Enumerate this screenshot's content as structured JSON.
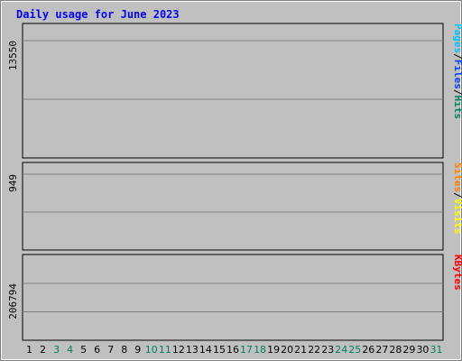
{
  "chart_data": {
    "type": "bar",
    "title": "Daily usage for June 2023",
    "categories": [
      "1",
      "2",
      "3",
      "4",
      "5",
      "6",
      "7",
      "8",
      "9",
      "10",
      "11",
      "12",
      "13",
      "14",
      "15",
      "16",
      "17",
      "18",
      "19",
      "20",
      "21",
      "22",
      "23",
      "24",
      "25",
      "26",
      "27",
      "28",
      "29",
      "30",
      "31"
    ],
    "weekend_days": [
      3,
      4,
      10,
      11,
      17,
      18,
      24,
      25,
      31
    ],
    "panels": [
      {
        "id": "top",
        "ymax_label": "13550",
        "ymax": 13550,
        "axis_words": [
          "Pages",
          "/",
          "Files",
          "/",
          "Hits"
        ],
        "series": [
          {
            "name": "Hits",
            "values": [
              null,
              null,
              null,
              null,
              null,
              null,
              null,
              null,
              null,
              null,
              null,
              null,
              null,
              null,
              null,
              null,
              null,
              null,
              null,
              null,
              null,
              null,
              null,
              null,
              null,
              null,
              null,
              null,
              null,
              null,
              null
            ]
          },
          {
            "name": "Files",
            "values": [
              null,
              null,
              null,
              null,
              null,
              null,
              null,
              null,
              null,
              null,
              null,
              null,
              null,
              null,
              null,
              null,
              null,
              null,
              null,
              null,
              null,
              null,
              null,
              null,
              null,
              null,
              null,
              null,
              null,
              null,
              null
            ]
          },
          {
            "name": "Pages",
            "values": [
              null,
              null,
              null,
              null,
              null,
              null,
              null,
              null,
              null,
              null,
              null,
              null,
              null,
              null,
              null,
              null,
              null,
              null,
              null,
              null,
              null,
              null,
              null,
              null,
              null,
              null,
              null,
              null,
              null,
              null,
              null
            ]
          }
        ]
      },
      {
        "id": "middle",
        "ymax_label": "949",
        "ymax": 949,
        "axis_words": [
          "Sites",
          "/",
          "Visits"
        ],
        "series": [
          {
            "name": "Visits",
            "values": [
              null,
              null,
              null,
              null,
              null,
              null,
              null,
              null,
              null,
              null,
              null,
              null,
              null,
              null,
              null,
              null,
              null,
              null,
              null,
              null,
              null,
              null,
              null,
              null,
              null,
              null,
              null,
              null,
              null,
              null,
              null
            ]
          },
          {
            "name": "Sites",
            "values": [
              null,
              null,
              null,
              null,
              null,
              null,
              null,
              null,
              null,
              null,
              null,
              null,
              null,
              null,
              null,
              null,
              null,
              null,
              null,
              null,
              null,
              null,
              null,
              null,
              null,
              null,
              null,
              null,
              null,
              null,
              null
            ]
          }
        ]
      },
      {
        "id": "bottom",
        "ymax_label": "206794",
        "ymax": 206794,
        "axis_words": [
          "KBytes"
        ],
        "series": [
          {
            "name": "KBytes",
            "values": [
              null,
              null,
              null,
              null,
              null,
              null,
              null,
              null,
              null,
              null,
              null,
              null,
              null,
              null,
              null,
              null,
              null,
              null,
              null,
              null,
              null,
              null,
              null,
              null,
              null,
              null,
              null,
              null,
              null,
              null,
              null
            ]
          }
        ]
      }
    ],
    "colors": {
      "hits": "#00805c",
      "files": "#0040ff",
      "pages": "#00c0ff",
      "visits": "#ffff00",
      "sites": "#ff8000",
      "kbytes": "#ff0000",
      "title": "#0000ff",
      "weekday_label": "#000000",
      "weekend_label": "#00805c",
      "frame_bg": "#c0c0c0",
      "plot_bg": "#c0c0c0"
    }
  }
}
